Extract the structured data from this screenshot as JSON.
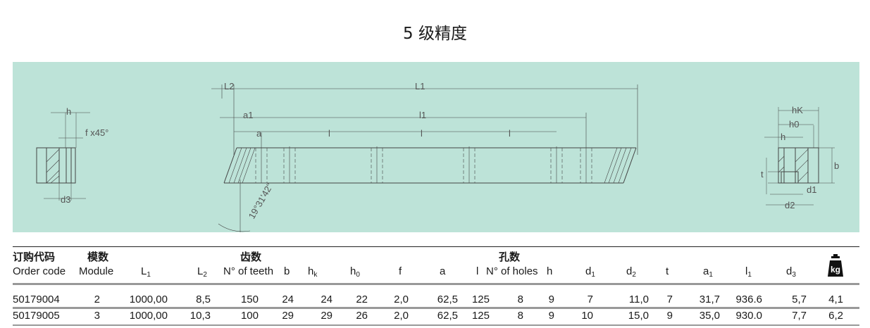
{
  "title": "5 级精度",
  "diagram": {
    "background": "#bde3d8",
    "left_view": {
      "h": "h",
      "f": "f x45°",
      "d3": "d3"
    },
    "main_view": {
      "L2": "L2",
      "L1": "L1",
      "a1": "a1",
      "l1": "l1",
      "a": "a",
      "l": "l",
      "angle": "19°31'42\""
    },
    "right_view": {
      "hK": "hK",
      "h0": "h0",
      "h": "h",
      "b": "b",
      "t": "t",
      "d1": "d1",
      "d2": "d2"
    }
  },
  "table": {
    "group_headers": {
      "order_code": "订购代码",
      "module": "模数",
      "teeth": "齿数",
      "holes": "孔数"
    },
    "columns": [
      "Order code",
      "Module",
      "L1",
      "L2",
      "N° of teeth",
      "b",
      "hk",
      "h0",
      "f",
      "a",
      "l",
      "N° of holes",
      "h",
      "d1",
      "d2",
      "t",
      "a1",
      "l1",
      "d3",
      "kg"
    ],
    "weight_icon": "kg-weight-icon",
    "rows": [
      [
        "50179004",
        "2",
        "1000,00",
        "8,5",
        "150",
        "24",
        "24",
        "22",
        "2,0",
        "62,5",
        "125",
        "8",
        "9",
        "7",
        "11,0",
        "7",
        "31,7",
        "936.6",
        "5,7",
        "4,1"
      ],
      [
        "50179005",
        "3",
        "1000,00",
        "10,3",
        "100",
        "29",
        "29",
        "26",
        "2,0",
        "62,5",
        "125",
        "8",
        "9",
        "10",
        "15,0",
        "9",
        "35,0",
        "930.0",
        "7,7",
        "6,2"
      ]
    ]
  }
}
